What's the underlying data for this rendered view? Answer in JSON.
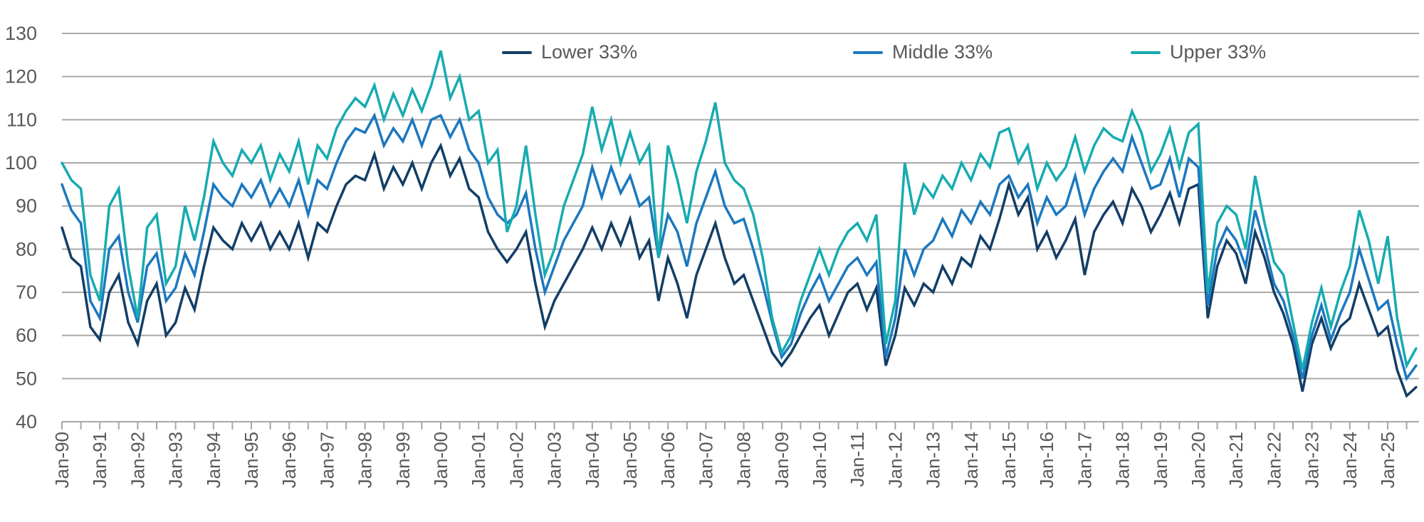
{
  "chart_data": {
    "type": "line",
    "title": "",
    "xlabel": "",
    "ylabel": "",
    "ylim": [
      40,
      130
    ],
    "grid": "horizontal",
    "legend_position": "top-inside",
    "points_per_year": 4,
    "x_start": "Jan-90",
    "x_end": "Oct-25",
    "y_axis": {
      "ticks": [
        40,
        50,
        60,
        70,
        80,
        90,
        100,
        110,
        120,
        130
      ]
    },
    "x_axis": {
      "tick_labels": [
        "Jan-90",
        "Jan-91",
        "Jan-92",
        "Jan-93",
        "Jan-94",
        "Jan-95",
        "Jan-96",
        "Jan-97",
        "Jan-98",
        "Jan-99",
        "Jan-00",
        "Jan-01",
        "Jan-02",
        "Jan-03",
        "Jan-04",
        "Jan-05",
        "Jan-06",
        "Jan-07",
        "Jan-08",
        "Jan-09",
        "Jan-10",
        "Jan-11",
        "Jan-12",
        "Jan-13",
        "Jan-14",
        "Jan-15",
        "Jan-16",
        "Jan-17",
        "Jan-18",
        "Jan-19",
        "Jan-20",
        "Jan-21",
        "Jan-22",
        "Jan-23",
        "Jan-24",
        "Jan-25"
      ],
      "minor_ticks_per_year": 2
    },
    "series": [
      {
        "name": "Lower 33%",
        "color": "#123e66",
        "values": [
          85,
          78,
          76,
          62,
          59,
          70,
          74,
          63,
          58,
          68,
          72,
          60,
          63,
          71,
          66,
          76,
          85,
          82,
          80,
          86,
          82,
          86,
          80,
          84,
          80,
          86,
          78,
          86,
          84,
          90,
          95,
          97,
          96,
          102,
          94,
          99,
          95,
          100,
          94,
          100,
          104,
          97,
          101,
          94,
          92,
          84,
          80,
          77,
          80,
          84,
          72,
          62,
          68,
          72,
          76,
          80,
          85,
          80,
          86,
          81,
          87,
          78,
          82,
          68,
          78,
          72,
          64,
          74,
          80,
          86,
          78,
          72,
          74,
          68,
          62,
          56,
          53,
          56,
          60,
          64,
          67,
          60,
          65,
          70,
          72,
          66,
          71,
          53,
          60,
          71,
          67,
          72,
          70,
          76,
          72,
          78,
          76,
          83,
          80,
          87,
          95,
          88,
          92,
          80,
          84,
          78,
          82,
          87,
          74,
          84,
          88,
          91,
          86,
          94,
          90,
          84,
          88,
          93,
          86,
          94,
          95,
          64,
          76,
          82,
          79,
          72,
          84,
          78,
          70,
          65,
          58,
          47,
          58,
          64,
          57,
          62,
          64,
          72,
          66,
          60,
          62,
          52,
          46,
          48
        ]
      },
      {
        "name": "Middle 33%",
        "color": "#1c78bf",
        "values": [
          95,
          89,
          86,
          68,
          64,
          80,
          83,
          70,
          63,
          76,
          79,
          68,
          71,
          79,
          74,
          84,
          95,
          92,
          90,
          95,
          92,
          96,
          90,
          94,
          90,
          96,
          88,
          96,
          94,
          100,
          105,
          108,
          107,
          111,
          104,
          108,
          105,
          110,
          104,
          110,
          111,
          106,
          110,
          103,
          100,
          92,
          88,
          86,
          88,
          93,
          80,
          70,
          76,
          82,
          86,
          90,
          99,
          92,
          99,
          93,
          97,
          90,
          92,
          78,
          88,
          84,
          76,
          86,
          92,
          98,
          90,
          86,
          87,
          80,
          72,
          63,
          55,
          58,
          65,
          70,
          74,
          68,
          72,
          76,
          78,
          74,
          77,
          55,
          64,
          80,
          74,
          80,
          82,
          87,
          83,
          89,
          86,
          91,
          88,
          95,
          97,
          92,
          95,
          86,
          92,
          88,
          90,
          97,
          88,
          94,
          98,
          101,
          98,
          106,
          100,
          94,
          95,
          101,
          92,
          101,
          99,
          67,
          80,
          85,
          82,
          76,
          89,
          81,
          72,
          68,
          60,
          50,
          60,
          67,
          59,
          65,
          70,
          80,
          73,
          66,
          68,
          58,
          50,
          53
        ]
      },
      {
        "name": "Upper 33%",
        "color": "#16abb0",
        "values": [
          100,
          96,
          94,
          74,
          68,
          90,
          94,
          76,
          64,
          85,
          88,
          72,
          76,
          90,
          82,
          92,
          105,
          100,
          97,
          103,
          100,
          104,
          96,
          102,
          98,
          105,
          95,
          104,
          101,
          108,
          112,
          115,
          113,
          118,
          110,
          116,
          111,
          117,
          112,
          118,
          126,
          115,
          120,
          110,
          112,
          100,
          103,
          84,
          90,
          104,
          88,
          74,
          80,
          90,
          96,
          102,
          113,
          103,
          110,
          100,
          107,
          100,
          104,
          78,
          104,
          96,
          86,
          98,
          105,
          114,
          100,
          96,
          94,
          88,
          78,
          64,
          56,
          60,
          68,
          74,
          80,
          74,
          80,
          84,
          86,
          82,
          88,
          58,
          68,
          100,
          88,
          95,
          92,
          97,
          94,
          100,
          96,
          102,
          99,
          107,
          108,
          100,
          104,
          94,
          100,
          96,
          99,
          106,
          98,
          104,
          108,
          106,
          105,
          112,
          107,
          98,
          102,
          108,
          99,
          107,
          109,
          70,
          86,
          90,
          88,
          80,
          97,
          86,
          77,
          74,
          63,
          52,
          63,
          71,
          62,
          70,
          76,
          89,
          82,
          72,
          83,
          64,
          53,
          57
        ]
      }
    ]
  },
  "style": {
    "grid_color": "#a9a9a9",
    "axis_color": "#a6a6a6",
    "label_color": "#595959",
    "background_color": "#ffffff"
  }
}
